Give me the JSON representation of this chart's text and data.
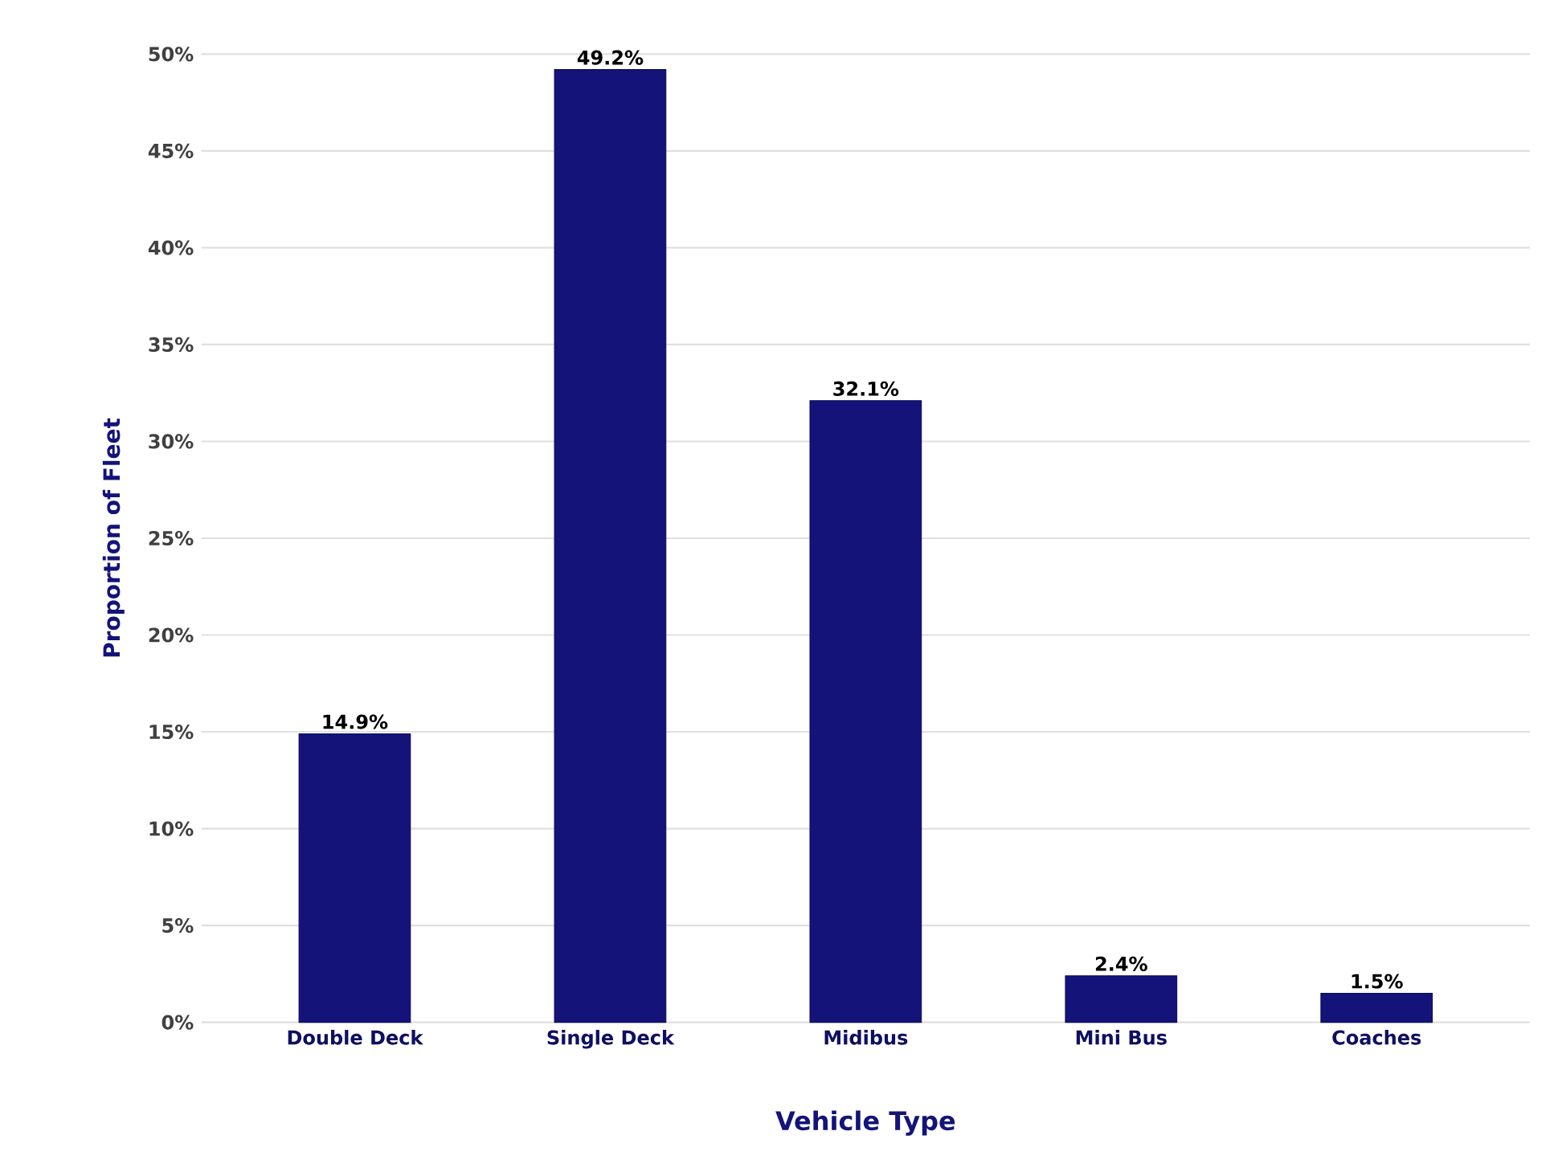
{
  "chart_data": {
    "type": "bar",
    "xlabel": "Vehicle Type",
    "ylabel": "Proportion of Fleet",
    "categories": [
      "Double Deck",
      "Single Deck",
      "Midibus",
      "Mini Bus",
      "Coaches"
    ],
    "values": [
      14.9,
      49.2,
      32.1,
      2.4,
      1.5
    ],
    "value_labels": [
      "14.9%",
      "49.2%",
      "32.1%",
      "2.4%",
      "1.5%"
    ],
    "color": "#13137a",
    "ylim": [
      0,
      50
    ],
    "yticks": [
      {
        "value": 0,
        "label": "0%"
      },
      {
        "value": 5,
        "label": "5%"
      },
      {
        "value": 10,
        "label": "10%"
      },
      {
        "value": 15,
        "label": "15%"
      },
      {
        "value": 20,
        "label": "20%"
      },
      {
        "value": 25,
        "label": "25%"
      },
      {
        "value": 30,
        "label": "30%"
      },
      {
        "value": 35,
        "label": "35%"
      },
      {
        "value": 40,
        "label": "40%"
      },
      {
        "value": 45,
        "label": "45%"
      },
      {
        "value": 50,
        "label": "50%"
      }
    ],
    "grid": "y"
  }
}
